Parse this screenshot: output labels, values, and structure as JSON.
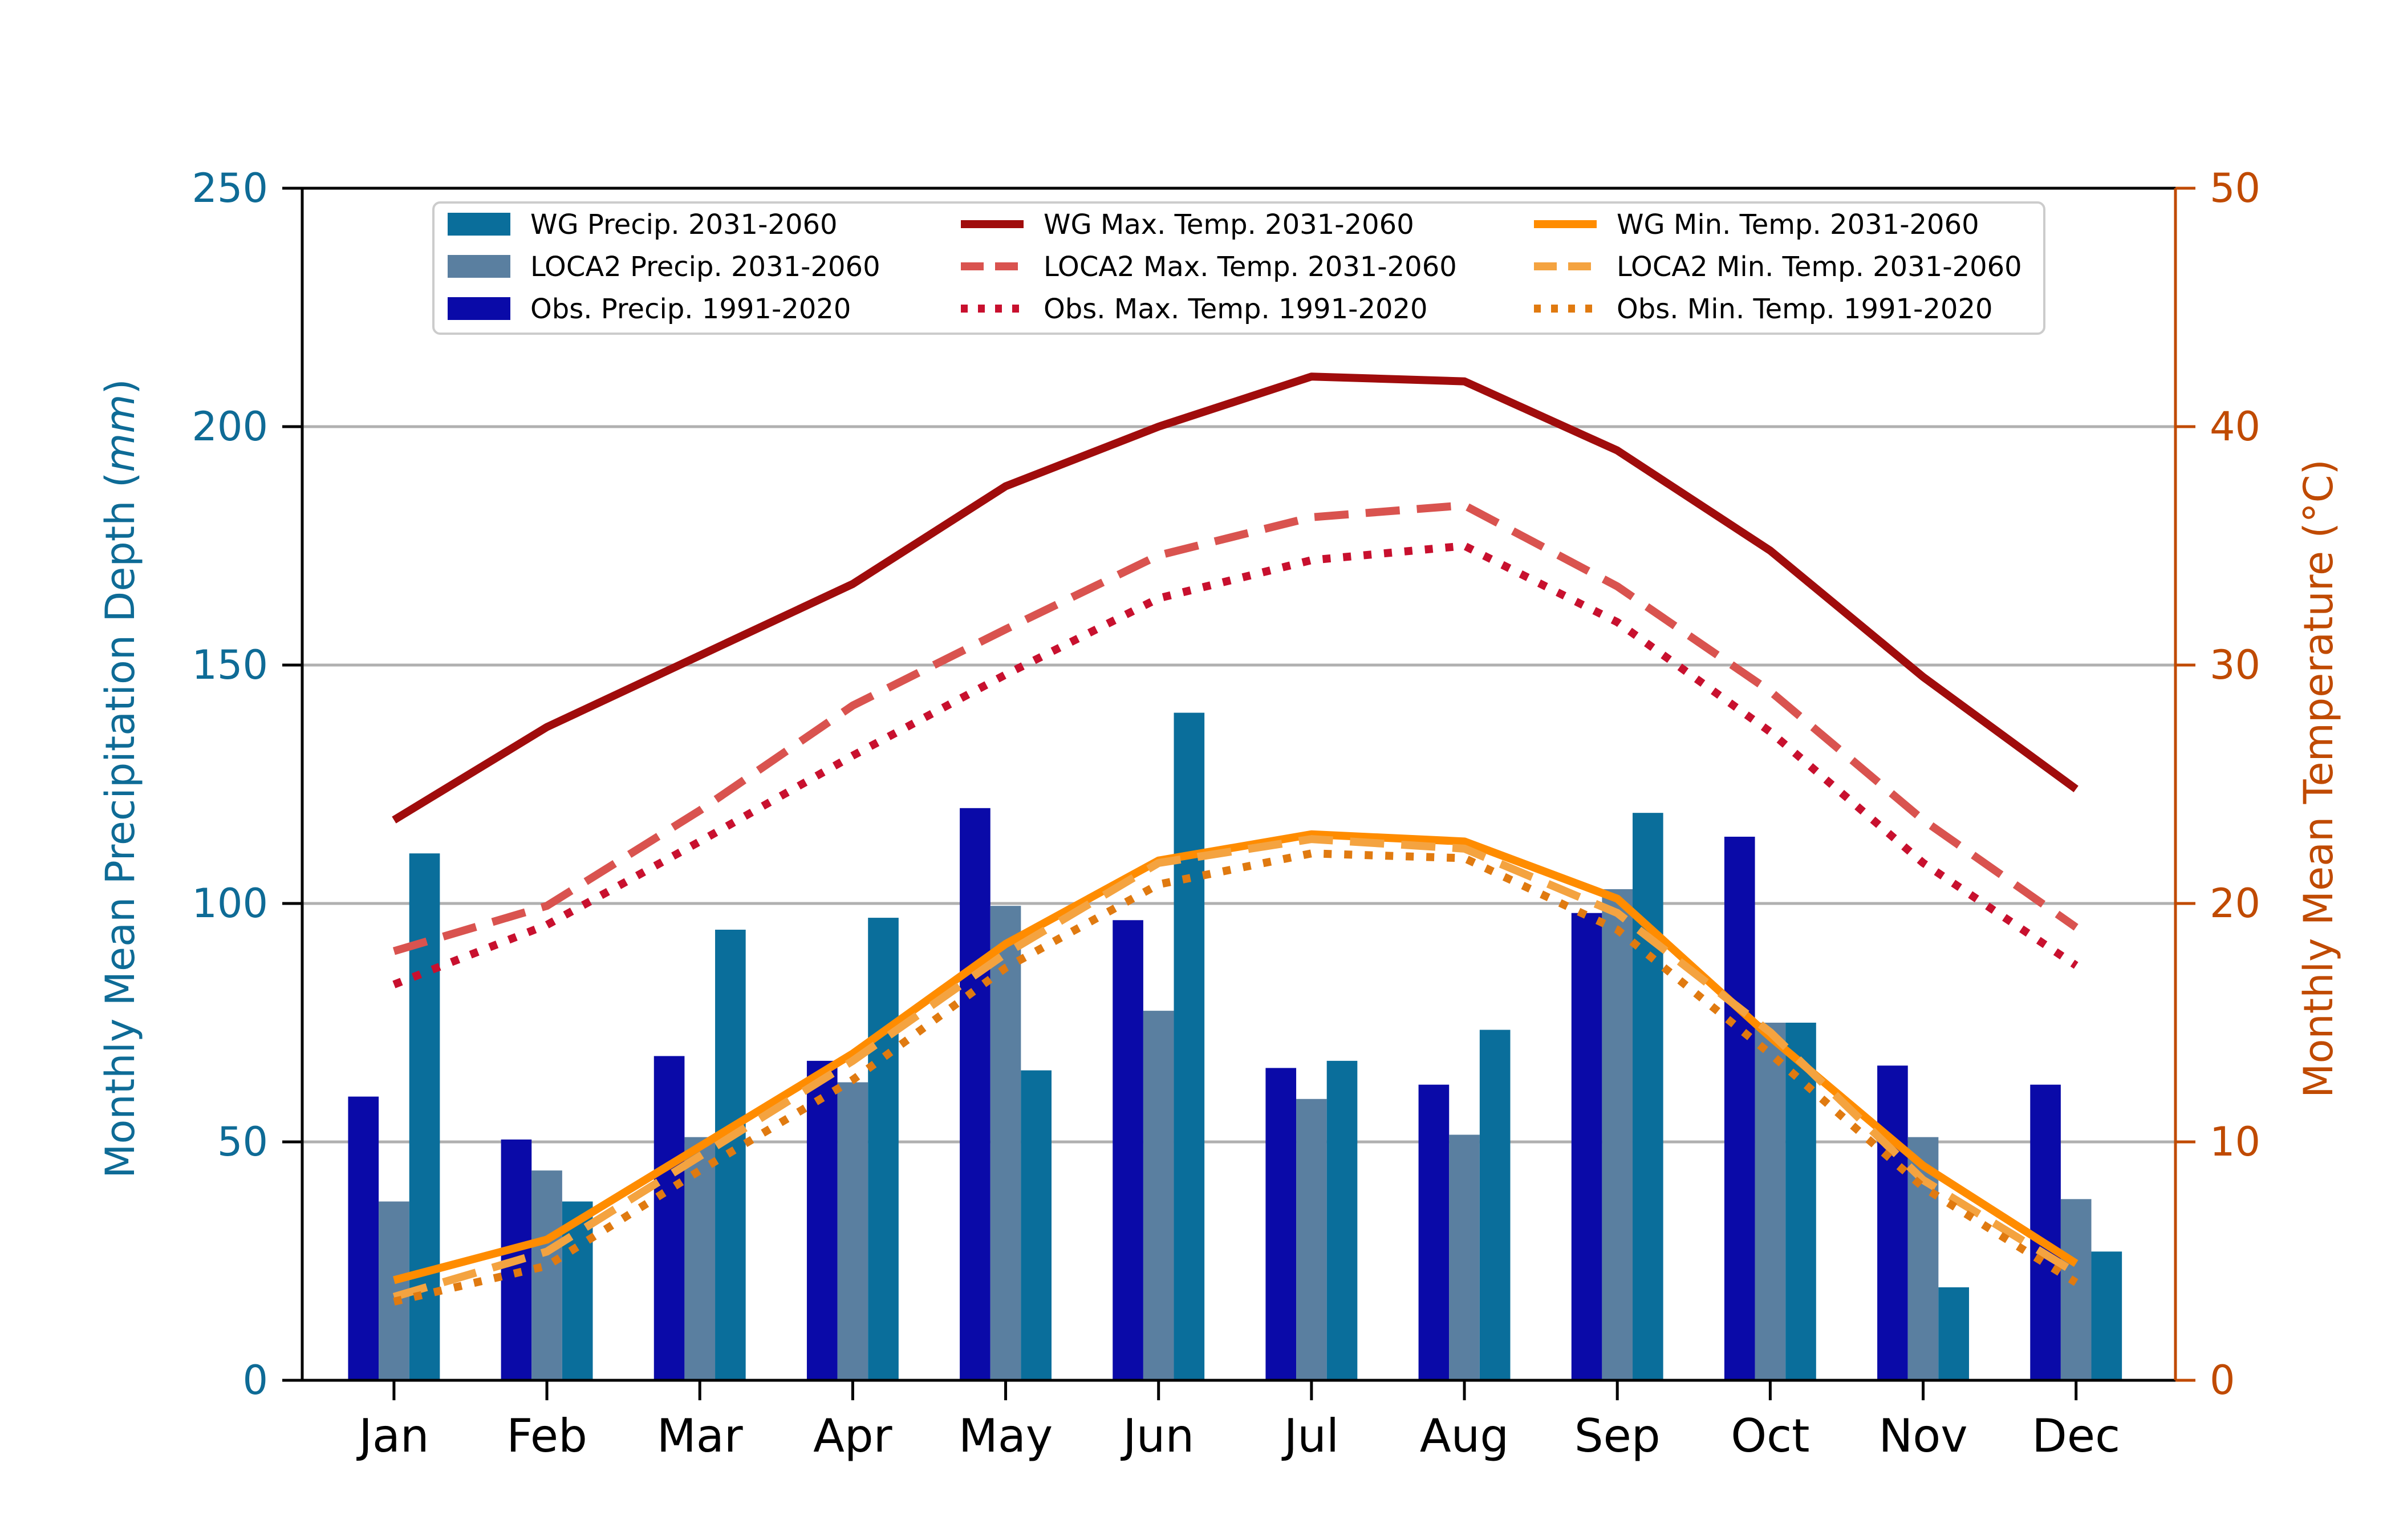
{
  "chart_data": {
    "type": "bar",
    "categories": [
      "Jan",
      "Feb",
      "Mar",
      "Apr",
      "May",
      "Jun",
      "Jul",
      "Aug",
      "Sep",
      "Oct",
      "Nov",
      "Dec"
    ],
    "ylabel_left_prefix": "Monthly Mean Precipitation Depth (",
    "ylabel_left_unit": "mm",
    "ylabel_left_suffix": ")",
    "ylabel_right": "Monthly Mean Temperature (°C)",
    "ylim_left": [
      0,
      250
    ],
    "ylim_right": [
      0,
      50
    ],
    "yticks_left": [
      "0",
      "50",
      "100",
      "150",
      "200",
      "250"
    ],
    "yticks_right": [
      "0",
      "10",
      "20",
      "30",
      "40",
      "50"
    ],
    "grid": "horizontal",
    "legend_position": "top",
    "left_axis_color": "#0e6b96",
    "right_axis_color": "#c04a00",
    "bar_series": [
      {
        "name": "Obs. Precip. 1991-2020",
        "color": "#0a0aa8",
        "values": [
          59.5,
          50.5,
          68,
          67,
          120,
          96.5,
          65.5,
          62,
          98,
          114,
          66,
          62
        ]
      },
      {
        "name": "LOCA2 Precip. 2031-2060",
        "color": "#5a7fa0",
        "values": [
          37.5,
          44,
          51,
          62.5,
          99.5,
          77.5,
          59,
          51.5,
          103,
          75,
          51,
          38
        ]
      },
      {
        "name": "WG Precip. 2031-2060",
        "color": "#0a6e9b",
        "values": [
          110.5,
          37.5,
          94.5,
          97,
          65,
          140,
          67,
          73.5,
          119,
          75,
          19.5,
          27
        ]
      }
    ],
    "line_series": [
      {
        "name": "WG Max. Temp. 2031-2060",
        "color": "#a00c0c",
        "style": "solid",
        "values": [
          23.5,
          27.4,
          30.4,
          33.4,
          37.5,
          40.0,
          42.1,
          41.9,
          39.0,
          34.8,
          29.5,
          24.8
        ]
      },
      {
        "name": "LOCA2 Max. Temp. 2031-2060",
        "color": "#d9534f",
        "style": "dashed",
        "values": [
          18.0,
          19.9,
          23.9,
          28.3,
          31.5,
          34.6,
          36.2,
          36.7,
          33.3,
          28.9,
          23.5,
          19.0
        ]
      },
      {
        "name": "Obs. Max. Temp. 1991-2020",
        "color": "#c8102e",
        "style": "dotted",
        "values": [
          16.6,
          19.1,
          22.6,
          26.2,
          29.6,
          32.8,
          34.4,
          35.0,
          31.8,
          27.2,
          21.7,
          17.4
        ]
      },
      {
        "name": "WG Min. Temp. 2031-2060",
        "color": "#ff8c00",
        "style": "solid",
        "values": [
          4.2,
          5.9,
          9.8,
          13.7,
          18.3,
          21.8,
          22.9,
          22.6,
          20.2,
          14.4,
          9.0,
          4.9
        ]
      },
      {
        "name": "LOCA2 Min. Temp. 2031-2060",
        "color": "#f4a340",
        "style": "dashed",
        "values": [
          3.5,
          5.4,
          9.4,
          13.4,
          17.9,
          21.7,
          22.7,
          22.3,
          19.6,
          14.6,
          8.4,
          4.5
        ]
      },
      {
        "name": "Obs. Min. Temp. 1991-2020",
        "color": "#e07a10",
        "style": "dotted",
        "values": [
          3.3,
          4.8,
          8.8,
          12.6,
          17.3,
          20.8,
          22.1,
          21.9,
          18.9,
          13.7,
          8.1,
          4.1
        ]
      }
    ],
    "legend_order": [
      "WG Precip. 2031-2060",
      "LOCA2 Precip. 2031-2060",
      "Obs. Precip. 1991-2020",
      "WG Max. Temp. 2031-2060",
      "LOCA2 Max. Temp. 2031-2060",
      "Obs. Max. Temp. 1991-2020",
      "WG Min. Temp. 2031-2060",
      "LOCA2 Min. Temp. 2031-2060",
      "Obs. Min. Temp. 1991-2020"
    ]
  }
}
